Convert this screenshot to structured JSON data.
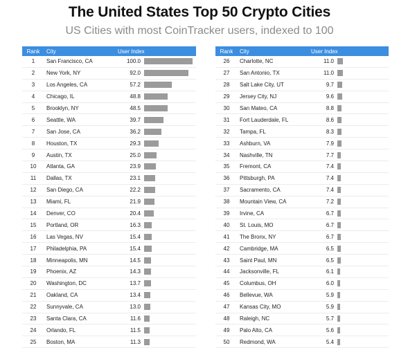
{
  "header": {
    "title": "The United States Top 50 Crypto Cities",
    "subtitle": "US Cities with most CoinTracker users, indexed to 100"
  },
  "table": {
    "columns": {
      "rank": "Rank",
      "city": "City",
      "index": "User Index"
    },
    "max_index": 100,
    "bar_color": "#9b9b9b",
    "header_color": "#3b8ee0",
    "rows": [
      {
        "rank": "1",
        "city": "San Francisco, CA",
        "index": "100.0"
      },
      {
        "rank": "2",
        "city": "New York, NY",
        "index": "92.0"
      },
      {
        "rank": "3",
        "city": "Los Angeles, CA",
        "index": "57.2"
      },
      {
        "rank": "4",
        "city": "Chicago, IL",
        "index": "48.8"
      },
      {
        "rank": "5",
        "city": "Brooklyn, NY",
        "index": "48.5"
      },
      {
        "rank": "6",
        "city": "Seattle, WA",
        "index": "39.7"
      },
      {
        "rank": "7",
        "city": "San Jose, CA",
        "index": "36.2"
      },
      {
        "rank": "8",
        "city": "Houston, TX",
        "index": "29.3"
      },
      {
        "rank": "9",
        "city": "Austin, TX",
        "index": "25.0"
      },
      {
        "rank": "10",
        "city": "Atlanta, GA",
        "index": "23.9"
      },
      {
        "rank": "11",
        "city": "Dallas, TX",
        "index": "23.1"
      },
      {
        "rank": "12",
        "city": "San Diego, CA",
        "index": "22.2"
      },
      {
        "rank": "13",
        "city": "Miami, FL",
        "index": "21.9"
      },
      {
        "rank": "14",
        "city": "Denver, CO",
        "index": "20.4"
      },
      {
        "rank": "15",
        "city": "Portland, OR",
        "index": "16.3"
      },
      {
        "rank": "16",
        "city": "Las Vegas, NV",
        "index": "15.4"
      },
      {
        "rank": "17",
        "city": "Philadelphia, PA",
        "index": "15.4"
      },
      {
        "rank": "18",
        "city": "Minneapolis, MN",
        "index": "14.5"
      },
      {
        "rank": "19",
        "city": "Phoenix, AZ",
        "index": "14.3"
      },
      {
        "rank": "20",
        "city": "Washington, DC",
        "index": "13.7"
      },
      {
        "rank": "21",
        "city": "Oakland, CA",
        "index": "13.4"
      },
      {
        "rank": "22",
        "city": "Sunnyvale, CA",
        "index": "13.0"
      },
      {
        "rank": "23",
        "city": "Santa Clara, CA",
        "index": "11.6"
      },
      {
        "rank": "24",
        "city": "Orlando, FL",
        "index": "11.5"
      },
      {
        "rank": "25",
        "city": "Boston, MA",
        "index": "11.3"
      },
      {
        "rank": "26",
        "city": "Charlotte, NC",
        "index": "11.0"
      },
      {
        "rank": "27",
        "city": "San Antonio, TX",
        "index": "11.0"
      },
      {
        "rank": "28",
        "city": "Salt Lake City, UT",
        "index": "9.7"
      },
      {
        "rank": "29",
        "city": "Jersey City, NJ",
        "index": "9.6"
      },
      {
        "rank": "30",
        "city": "San Mateo, CA",
        "index": "8.8"
      },
      {
        "rank": "31",
        "city": "Fort Lauderdale, FL",
        "index": "8.6"
      },
      {
        "rank": "32",
        "city": "Tampa, FL",
        "index": "8.3"
      },
      {
        "rank": "33",
        "city": "Ashburn, VA",
        "index": "7.9"
      },
      {
        "rank": "34",
        "city": "Nashville, TN",
        "index": "7.7"
      },
      {
        "rank": "35",
        "city": "Fremont, CA",
        "index": "7.4"
      },
      {
        "rank": "36",
        "city": "Pittsburgh, PA",
        "index": "7.4"
      },
      {
        "rank": "37",
        "city": "Sacramento, CA",
        "index": "7.4"
      },
      {
        "rank": "38",
        "city": "Mountain View, CA",
        "index": "7.2"
      },
      {
        "rank": "39",
        "city": "Irvine, CA",
        "index": "6.7"
      },
      {
        "rank": "40",
        "city": "St. Louis, MO",
        "index": "6.7"
      },
      {
        "rank": "41",
        "city": "The Bronx, NY",
        "index": "6.7"
      },
      {
        "rank": "42",
        "city": "Cambridge, MA",
        "index": "6.5"
      },
      {
        "rank": "43",
        "city": "Saint Paul, MN",
        "index": "6.5"
      },
      {
        "rank": "44",
        "city": "Jacksonville, FL",
        "index": "6.1"
      },
      {
        "rank": "45",
        "city": "Columbus, OH",
        "index": "6.0"
      },
      {
        "rank": "46",
        "city": "Bellevue, WA",
        "index": "5.9"
      },
      {
        "rank": "47",
        "city": "Kansas City, MO",
        "index": "5.9"
      },
      {
        "rank": "48",
        "city": "Raleigh, NC",
        "index": "5.7"
      },
      {
        "rank": "49",
        "city": "Palo Alto, CA",
        "index": "5.6"
      },
      {
        "rank": "50",
        "city": "Redmond, WA",
        "index": "5.4"
      }
    ]
  }
}
